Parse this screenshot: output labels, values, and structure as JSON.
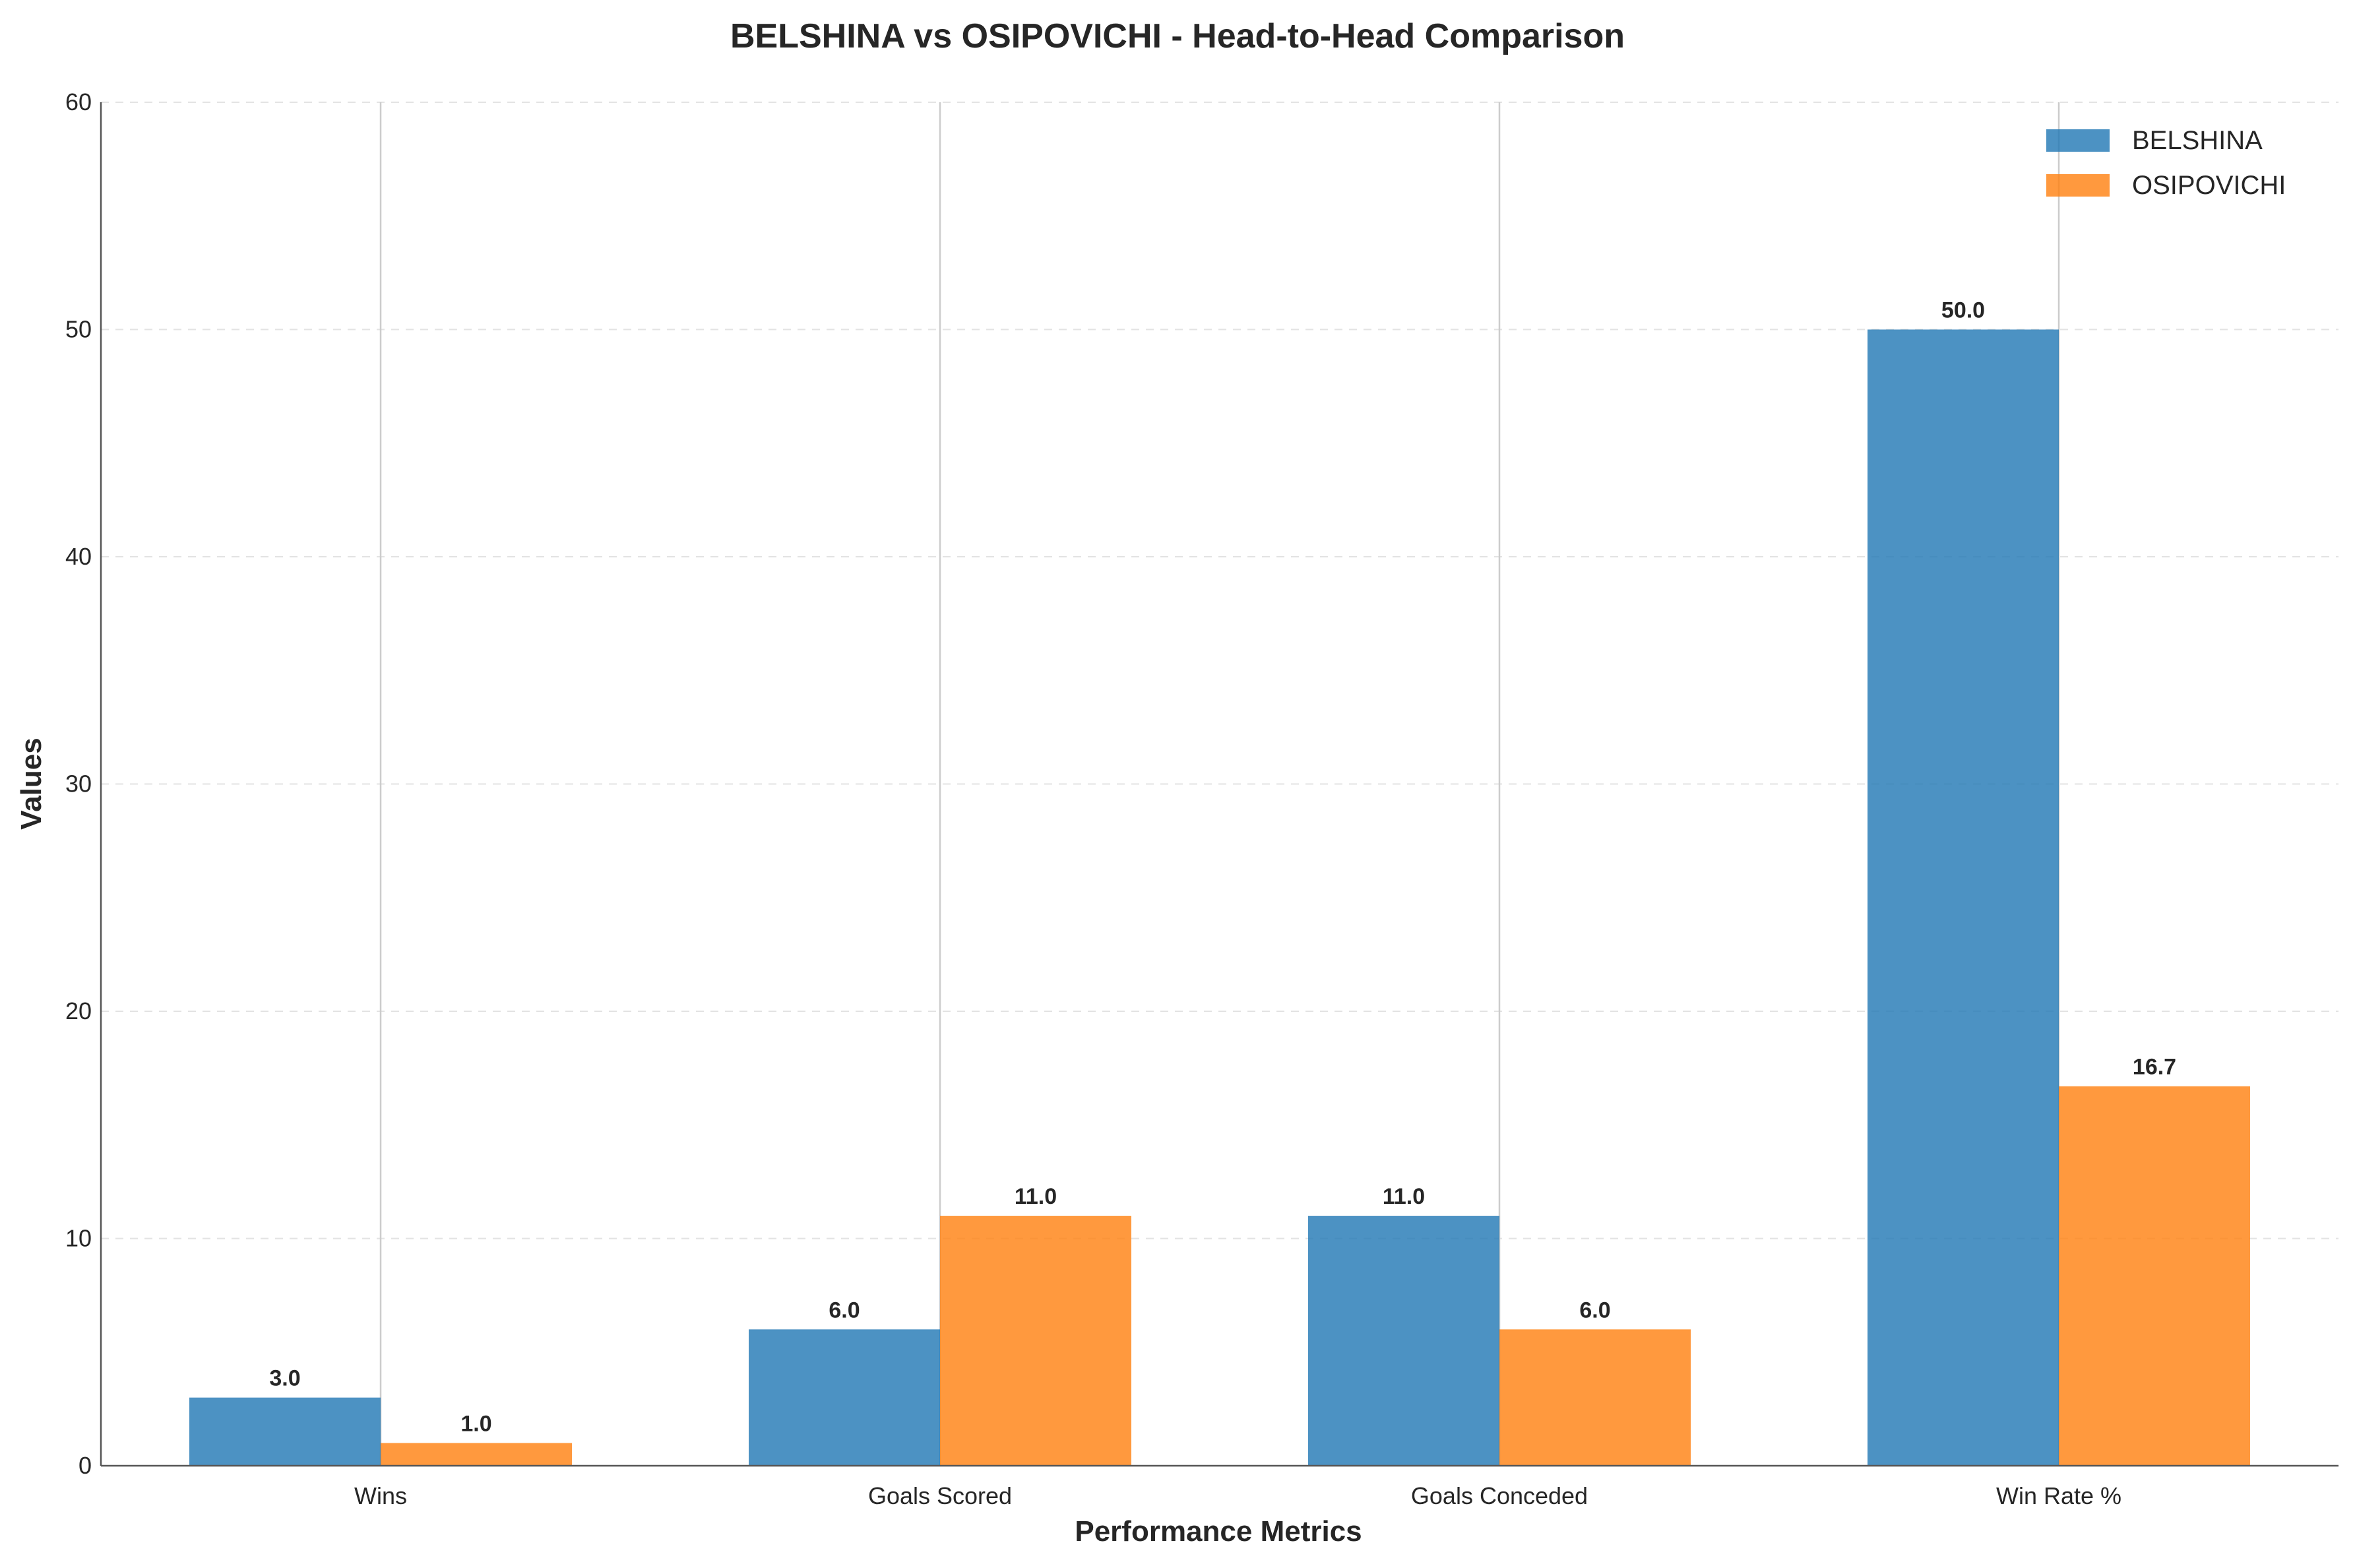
{
  "chart_data": {
    "type": "bar",
    "title": "BELSHINA vs OSIPOVICHI - Head-to-Head Comparison",
    "xlabel": "Performance Metrics",
    "ylabel": "Values",
    "categories": [
      "Wins",
      "Goals Scored",
      "Goals Conceded",
      "Win Rate %"
    ],
    "series": [
      {
        "name": "BELSHINA",
        "values": [
          3.0,
          6.0,
          11.0,
          50.0
        ],
        "color": "#1f77b4",
        "labels": [
          "3.0",
          "6.0",
          "11.0",
          "50.0"
        ]
      },
      {
        "name": "OSIPOVICHI",
        "values": [
          1.0,
          11.0,
          6.0,
          16.7
        ],
        "color": "#ff7f0e",
        "labels": [
          "1.0",
          "11.0",
          "6.0",
          "16.7"
        ]
      }
    ],
    "ylim": [
      0,
      60
    ],
    "yticks": [
      "0",
      "10",
      "20",
      "30",
      "40",
      "50",
      "60"
    ],
    "grid": true,
    "legend_position": "top-right"
  }
}
